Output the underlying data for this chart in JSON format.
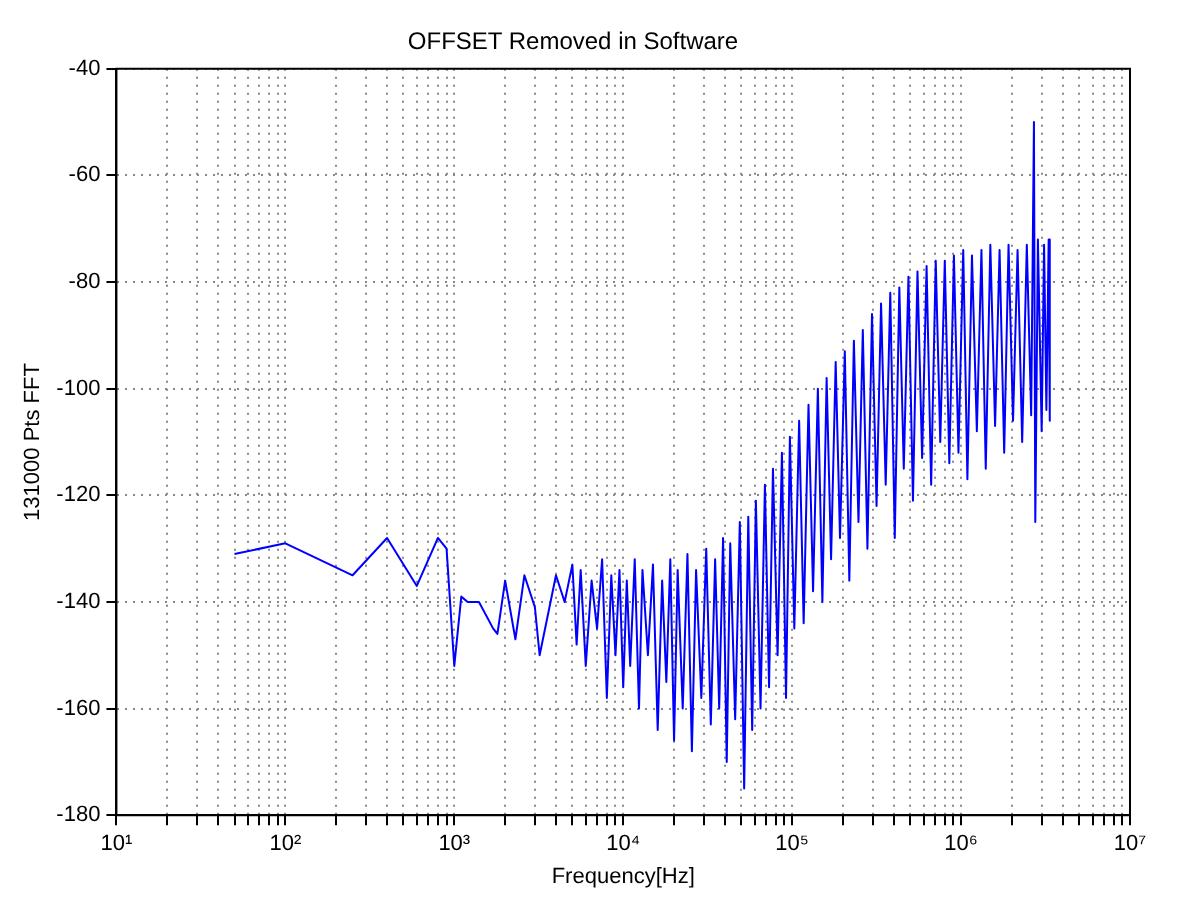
{
  "chart_data": {
    "type": "line",
    "title": "OFFSET Removed in Software",
    "xlabel": "Frequency[Hz]",
    "ylabel": "131000 Pts FFT",
    "log": "x",
    "grid": true,
    "legend": false,
    "marker": "none",
    "line_style": "solid",
    "xlim": [
      10,
      10000000
    ],
    "ylim": [
      -180,
      -40
    ],
    "xticks": [
      {
        "value": 10,
        "label": "10¹"
      },
      {
        "value": 20,
        "label": null
      },
      {
        "value": 30,
        "label": null
      },
      {
        "value": 40,
        "label": null
      },
      {
        "value": 50,
        "label": null
      },
      {
        "value": 60,
        "label": null
      },
      {
        "value": 70,
        "label": null
      },
      {
        "value": 80,
        "label": null
      },
      {
        "value": 90,
        "label": null
      },
      {
        "value": 100,
        "label": "10²"
      },
      {
        "value": 200,
        "label": null
      },
      {
        "value": 300,
        "label": null
      },
      {
        "value": 400,
        "label": null
      },
      {
        "value": 500,
        "label": null
      },
      {
        "value": 600,
        "label": null
      },
      {
        "value": 700,
        "label": null
      },
      {
        "value": 800,
        "label": null
      },
      {
        "value": 900,
        "label": null
      },
      {
        "value": 1000,
        "label": "10³"
      },
      {
        "value": 2000,
        "label": null
      },
      {
        "value": 3000,
        "label": null
      },
      {
        "value": 4000,
        "label": null
      },
      {
        "value": 5000,
        "label": null
      },
      {
        "value": 6000,
        "label": null
      },
      {
        "value": 7000,
        "label": null
      },
      {
        "value": 8000,
        "label": null
      },
      {
        "value": 9000,
        "label": null
      },
      {
        "value": 10000,
        "label": "10⁴"
      },
      {
        "value": 20000,
        "label": null
      },
      {
        "value": 30000,
        "label": null
      },
      {
        "value": 40000,
        "label": null
      },
      {
        "value": 50000,
        "label": null
      },
      {
        "value": 60000,
        "label": null
      },
      {
        "value": 70000,
        "label": null
      },
      {
        "value": 80000,
        "label": null
      },
      {
        "value": 90000,
        "label": null
      },
      {
        "value": 100000,
        "label": "10⁵"
      },
      {
        "value": 200000,
        "label": null
      },
      {
        "value": 300000,
        "label": null
      },
      {
        "value": 400000,
        "label": null
      },
      {
        "value": 500000,
        "label": null
      },
      {
        "value": 600000,
        "label": null
      },
      {
        "value": 700000,
        "label": null
      },
      {
        "value": 800000,
        "label": null
      },
      {
        "value": 900000,
        "label": null
      },
      {
        "value": 1000000,
        "label": "10⁶"
      },
      {
        "value": 2000000,
        "label": null
      },
      {
        "value": 3000000,
        "label": null
      },
      {
        "value": 4000000,
        "label": null
      },
      {
        "value": 5000000,
        "label": null
      },
      {
        "value": 6000000,
        "label": null
      },
      {
        "value": 7000000,
        "label": null
      },
      {
        "value": 8000000,
        "label": null
      },
      {
        "value": 9000000,
        "label": null
      },
      {
        "value": 10000000,
        "label": "10⁷"
      }
    ],
    "yticks": [
      -180,
      -160,
      -140,
      -120,
      -100,
      -80,
      -60,
      -40
    ],
    "series": [
      {
        "color": "#0000ff",
        "x": [
          50,
          100,
          250,
          400,
          600,
          800,
          900,
          1000,
          1100,
          1200,
          1400,
          1700,
          1800,
          2000,
          2300,
          2600,
          3000,
          3200,
          4000,
          4500,
          5000,
          5300,
          5600,
          6000,
          6500,
          7000,
          7500,
          8000,
          8500,
          9000,
          9500,
          10000,
          10500,
          11000,
          11700,
          12400,
          13000,
          14000,
          15000,
          16000,
          17000,
          18000,
          19000,
          20000,
          21000,
          22500,
          24000,
          25500,
          27000,
          29000,
          31000,
          33000,
          35000,
          37000,
          39000,
          41000,
          43000,
          46000,
          49000,
          52000,
          55000,
          58000,
          61000,
          65000,
          69000,
          73000,
          77000,
          82000,
          87000,
          92000,
          97000,
          103000,
          110000,
          117000,
          125000,
          133000,
          142000,
          151000,
          160000,
          170000,
          181000,
          192000,
          205000,
          218000,
          232000,
          247000,
          262000,
          279000,
          297000,
          316000,
          336000,
          358000,
          381000,
          405000,
          431000,
          458000,
          488000,
          519000,
          552000,
          588000,
          625000,
          665000,
          708000,
          753000,
          801000,
          852000,
          907000,
          965000,
          1030000,
          1090000,
          1160000,
          1240000,
          1320000,
          1400000,
          1490000,
          1590000,
          1690000,
          1800000,
          1910000,
          2030000,
          2160000,
          2300000,
          2450000,
          2600000,
          2700000,
          2750000,
          2850000,
          3000000,
          3100000,
          3200000,
          3300000,
          3350000
        ],
        "values": [
          -131,
          -129,
          -135,
          -128,
          -137,
          -128,
          -130,
          -152,
          -139,
          -140,
          -140,
          -145,
          -146,
          -136,
          -147,
          -135,
          -141,
          -150,
          -135,
          -140,
          -133,
          -148,
          -134,
          -152,
          -136,
          -145,
          -132,
          -158,
          -135,
          -150,
          -134,
          -156,
          -136,
          -152,
          -132,
          -160,
          -134,
          -150,
          -133,
          -164,
          -136,
          -155,
          -132,
          -166,
          -134,
          -160,
          -131,
          -168,
          -134,
          -158,
          -130,
          -163,
          -132,
          -160,
          -128,
          -170,
          -129,
          -162,
          -125,
          -175,
          -124,
          -164,
          -121,
          -160,
          -118,
          -156,
          -115,
          -150,
          -112,
          -158,
          -109,
          -145,
          -106,
          -144,
          -103,
          -138,
          -100,
          -140,
          -98,
          -132,
          -95,
          -128,
          -93,
          -136,
          -91,
          -125,
          -89,
          -130,
          -86,
          -122,
          -84,
          -118,
          -82,
          -128,
          -81,
          -115,
          -79,
          -121,
          -78,
          -113,
          -77,
          -118,
          -76,
          -110,
          -76,
          -114,
          -75,
          -112,
          -74,
          -117,
          -75,
          -108,
          -74,
          -115,
          -73,
          -107,
          -74,
          -112,
          -73,
          -106,
          -74,
          -110,
          -73,
          -105,
          -50,
          -125,
          -72,
          -108,
          -73,
          -104,
          -72,
          -106
        ]
      }
    ]
  }
}
